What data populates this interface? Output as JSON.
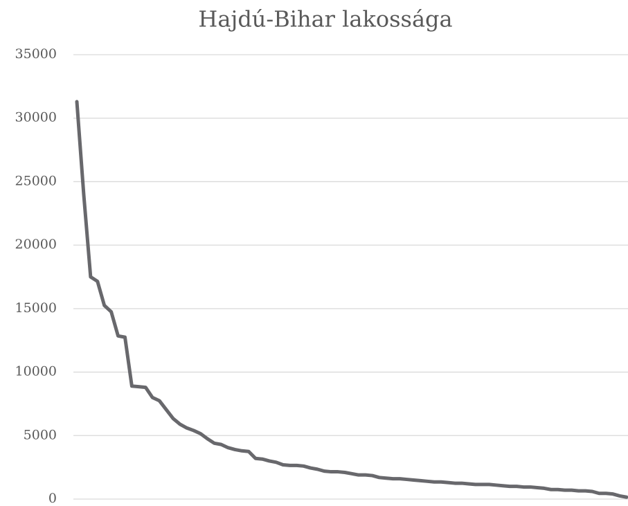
{
  "chart_data": {
    "type": "line",
    "title": "Hajdú-Bihar lakossága",
    "categories": [
      null,
      null,
      null,
      null,
      null,
      null,
      null,
      null,
      null,
      null,
      null,
      null,
      null,
      null,
      null,
      null,
      null,
      null,
      null,
      null,
      null,
      null,
      null,
      null,
      null,
      null,
      null,
      null,
      null,
      null,
      null,
      null,
      null,
      null,
      null,
      null,
      null,
      null,
      null,
      null,
      null,
      null,
      null,
      null,
      null,
      null,
      null,
      null,
      null,
      null,
      null,
      null,
      null,
      null,
      null,
      null,
      null,
      null,
      null,
      null,
      null,
      null,
      null,
      null,
      null,
      null,
      null,
      null,
      null,
      null,
      null,
      null,
      null,
      null,
      null,
      null,
      null,
      null,
      null,
      null,
      null
    ],
    "values": [
      31300,
      24000,
      17500,
      17150,
      15250,
      14750,
      12850,
      12750,
      8900,
      8850,
      8800,
      8000,
      7750,
      7050,
      6350,
      5900,
      5600,
      5400,
      5150,
      4750,
      4400,
      4300,
      4050,
      3900,
      3800,
      3750,
      3200,
      3150,
      3000,
      2900,
      2700,
      2650,
      2650,
      2600,
      2450,
      2350,
      2200,
      2150,
      2150,
      2100,
      2000,
      1900,
      1900,
      1850,
      1700,
      1650,
      1600,
      1600,
      1550,
      1500,
      1450,
      1400,
      1350,
      1350,
      1300,
      1250,
      1250,
      1200,
      1150,
      1150,
      1150,
      1100,
      1050,
      1000,
      1000,
      950,
      950,
      900,
      850,
      750,
      750,
      700,
      700,
      650,
      650,
      600,
      450,
      450,
      400,
      250,
      150
    ],
    "color": "#68686c",
    "ylim": [
      0,
      35000
    ],
    "yticks": [
      0,
      5000,
      10000,
      15000,
      20000,
      25000,
      30000,
      35000
    ],
    "grid": true
  }
}
